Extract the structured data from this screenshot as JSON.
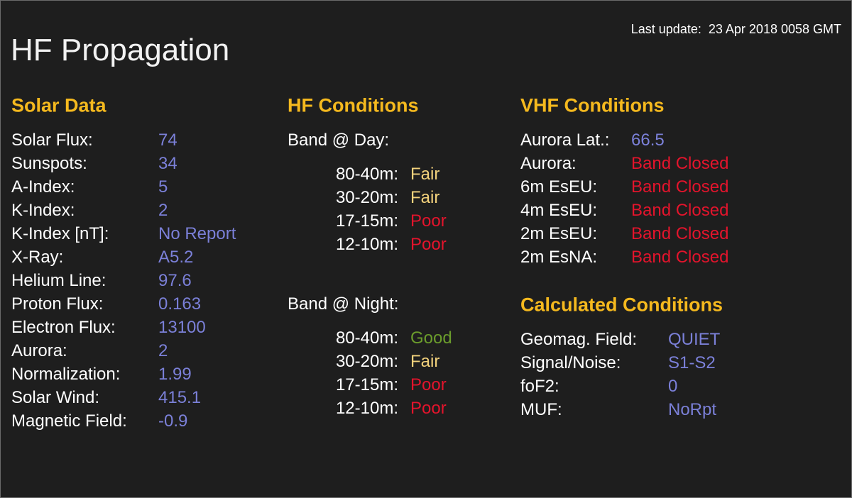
{
  "title": "HF Propagation",
  "last_update": {
    "label": "Last update:",
    "value": "23 Apr 2018 0058 GMT"
  },
  "solar": {
    "heading": "Solar Data",
    "rows": [
      {
        "label": "Solar Flux:",
        "value": "74",
        "color": "#7b80d8"
      },
      {
        "label": "Sunspots:",
        "value": "34",
        "color": "#7b80d8"
      },
      {
        "label": "A-Index:",
        "value": "5",
        "color": "#7b80d8"
      },
      {
        "label": "K-Index:",
        "value": "2",
        "color": "#7b80d8"
      },
      {
        "label": "K-Index [nT]:",
        "value": "No Report",
        "color": "#7b80d8"
      },
      {
        "label": "X-Ray:",
        "value": "A5.2",
        "color": "#7b80d8"
      },
      {
        "label": "Helium Line:",
        "value": "97.6",
        "color": "#7b80d8"
      },
      {
        "label": "Proton Flux:",
        "value": "0.163",
        "color": "#7b80d8"
      },
      {
        "label": "Electron Flux:",
        "value": "13100",
        "color": "#7b80d8"
      },
      {
        "label": "Aurora:",
        "value": "2",
        "color": "#7b80d8"
      },
      {
        "label": "Normalization:",
        "value": "1.99",
        "color": "#7b80d8"
      },
      {
        "label": "Solar Wind:",
        "value": "415.1",
        "color": "#7b80d8"
      },
      {
        "label": "Magnetic Field:",
        "value": "-0.9",
        "color": "#7b80d8"
      }
    ]
  },
  "hf": {
    "heading": "HF Conditions",
    "day": {
      "label": "Band @ Day:",
      "rows": [
        {
          "label": "80-40m:",
          "value": "Fair",
          "color": "#f3d27c"
        },
        {
          "label": "30-20m:",
          "value": "Fair",
          "color": "#f3d27c"
        },
        {
          "label": "17-15m:",
          "value": "Poor",
          "color": "#e3142c"
        },
        {
          "label": "12-10m:",
          "value": "Poor",
          "color": "#e3142c"
        }
      ]
    },
    "night": {
      "label": "Band @ Night:",
      "rows": [
        {
          "label": "80-40m:",
          "value": "Good",
          "color": "#6b9c2c"
        },
        {
          "label": "30-20m:",
          "value": "Fair",
          "color": "#f3d27c"
        },
        {
          "label": "17-15m:",
          "value": "Poor",
          "color": "#e3142c"
        },
        {
          "label": "12-10m:",
          "value": "Poor",
          "color": "#e3142c"
        }
      ]
    }
  },
  "vhf": {
    "heading": "VHF Conditions",
    "rows": [
      {
        "label": "Aurora Lat.:",
        "value": "66.5",
        "color": "#7b80d8"
      },
      {
        "label": "Aurora:",
        "value": "Band Closed",
        "color": "#e3142c"
      },
      {
        "label": "6m EsEU:",
        "value": "Band Closed",
        "color": "#e3142c"
      },
      {
        "label": "4m EsEU:",
        "value": "Band Closed",
        "color": "#e3142c"
      },
      {
        "label": "2m EsEU:",
        "value": "Band Closed",
        "color": "#e3142c"
      },
      {
        "label": "2m EsNA:",
        "value": "Band Closed",
        "color": "#e3142c"
      }
    ]
  },
  "calculated": {
    "heading": "Calculated Conditions",
    "rows": [
      {
        "label": "Geomag. Field:",
        "value": "QUIET",
        "color": "#7b80d8"
      },
      {
        "label": "Signal/Noise:",
        "value": "S1-S2",
        "color": "#7b80d8"
      },
      {
        "label": "foF2:",
        "value": "0",
        "color": "#7b80d8"
      },
      {
        "label": "MUF:",
        "value": "NoRpt",
        "color": "#7b80d8"
      }
    ]
  }
}
